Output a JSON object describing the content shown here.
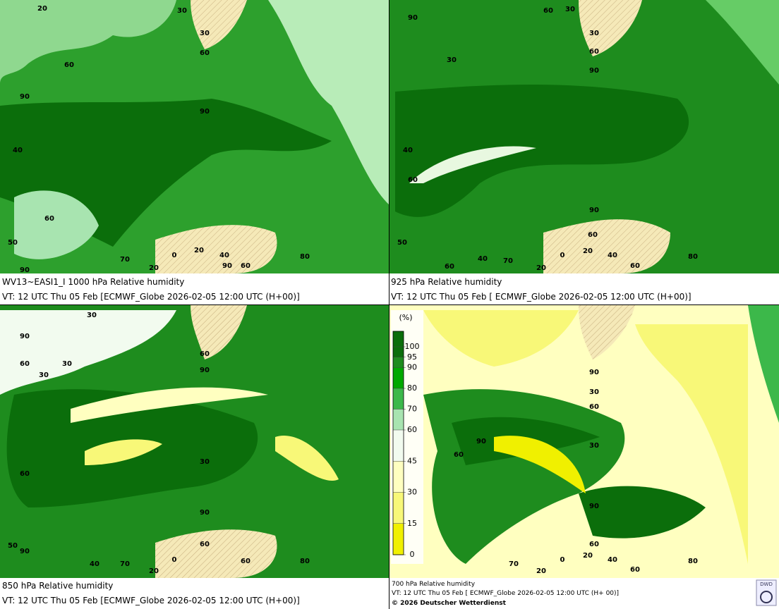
{
  "panels": [
    {
      "title": "WV13~EASI1_I 1000 hPa Relative humidity",
      "valid": "VT: 12 UTC Thu  05 Feb [ECMWF_Globe 2026-02-05 12:00 UTC  (H+00)]",
      "labels": [
        20,
        30,
        30,
        60,
        60,
        90,
        90,
        40,
        50,
        60,
        90,
        0,
        20,
        40,
        70,
        90,
        60,
        20,
        80
      ]
    },
    {
      "title": "925 hPa Relative humidity",
      "valid": "VT: 12 UTC Thu  05 Feb [ ECMWF_Globe 2026-02-05 12:00 UTC (H+00)]",
      "labels": [
        90,
        60,
        30,
        30,
        60,
        30,
        90,
        40,
        60,
        90,
        50,
        60,
        40,
        70,
        60,
        0,
        20,
        40,
        20,
        60,
        80
      ]
    },
    {
      "title": "850 hPa  Relative humidity",
      "valid": "VT: 12 UTC Thu  05 Feb [ECMWF_Globe 2026-02-05 12:00 UTC  (H+00)]",
      "labels": [
        30,
        90,
        60,
        30,
        60,
        90,
        30,
        30,
        60,
        90,
        50,
        90,
        60,
        40,
        70,
        20,
        0,
        60,
        80
      ]
    },
    {
      "title": "700 hPa Relative humidity",
      "valid": "VT: 12 UTC Thu  05 Feb [ ECMWF_Globe 2026-02-05 12:00 UTC  (H+ 00)]",
      "labels": [
        90,
        30,
        60,
        90,
        60,
        30,
        90,
        60,
        70,
        20,
        0,
        20,
        40,
        60,
        80
      ],
      "copyright": "© 2026 Deutscher Wetterdienst",
      "logo": "DWD"
    }
  ],
  "legend": {
    "unit": "(%)",
    "levels": [
      100,
      95,
      90,
      80,
      70,
      60,
      45,
      30,
      15,
      0
    ],
    "colors": [
      "#0b6e0b",
      "#1e8c1e",
      "#00a800",
      "#3cb84a",
      "#a8e4b0",
      "#f2fbef",
      "#ffffc0",
      "#f8f878",
      "#f0f000"
    ],
    "ylim": [
      0,
      100
    ]
  }
}
